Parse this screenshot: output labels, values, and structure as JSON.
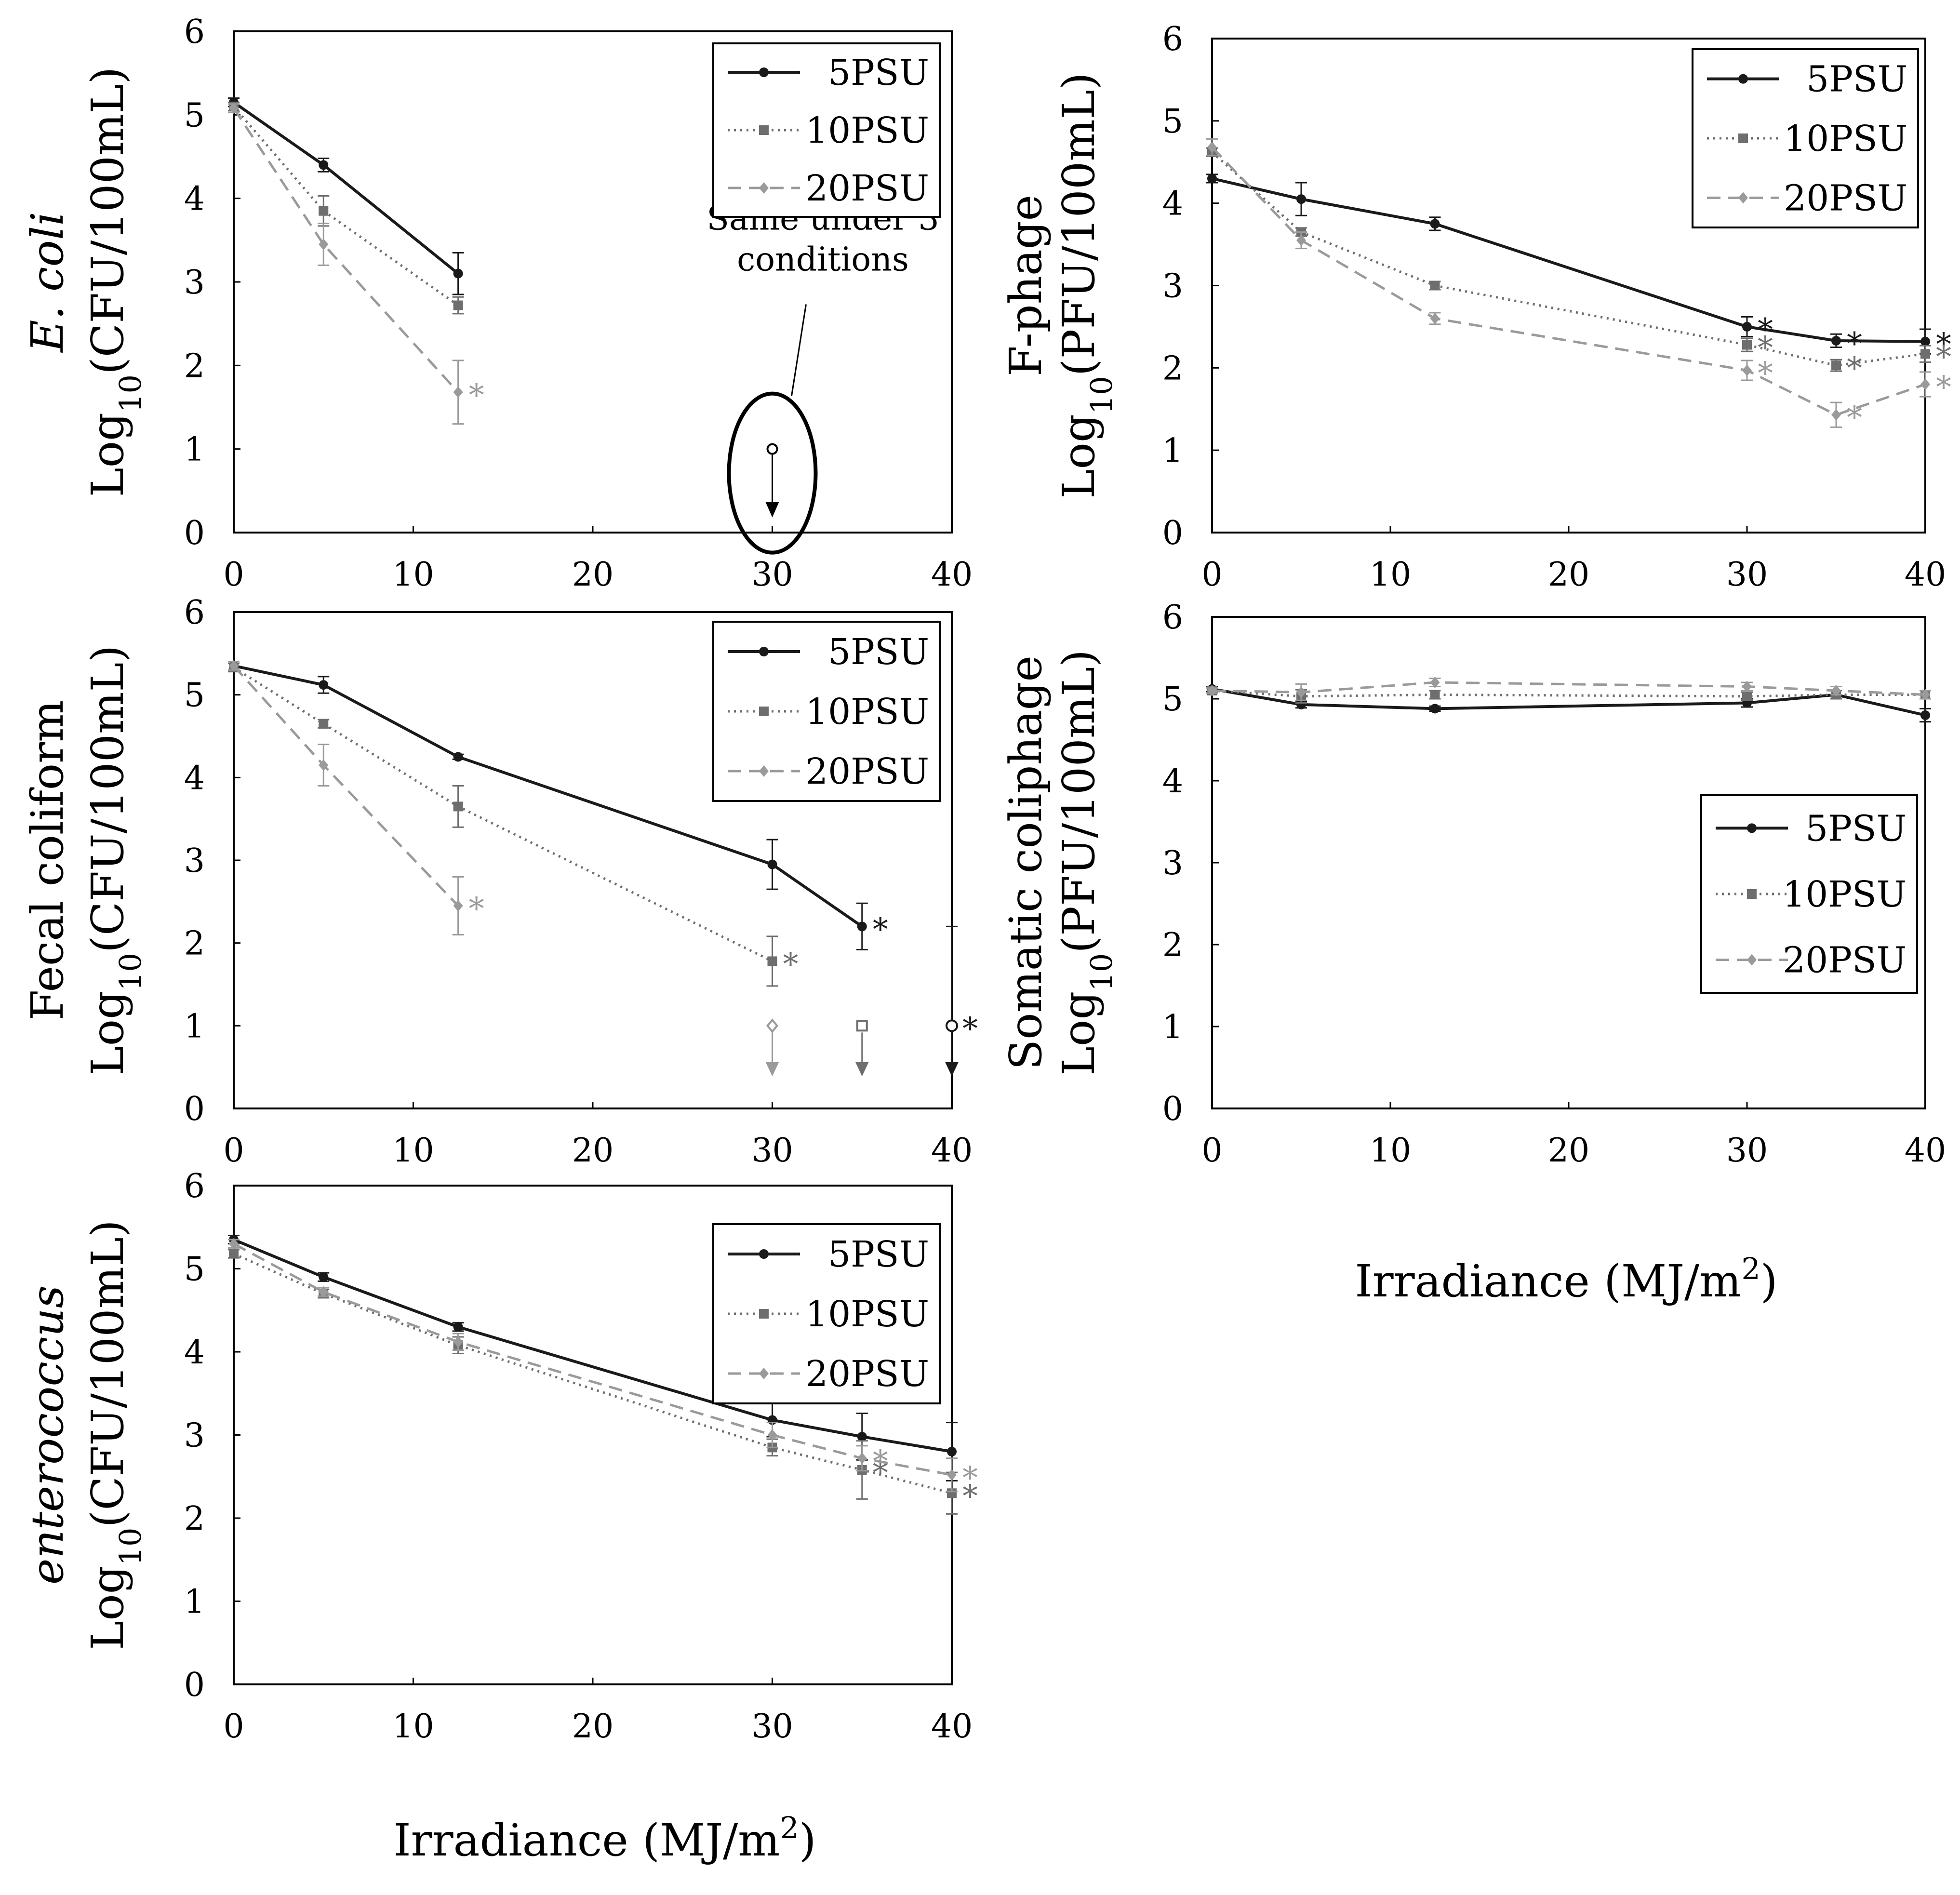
{
  "figure": {
    "xlabel_text": "Irradiance (MJ/m",
    "xlabel_sup": "2",
    "xlabel_close": ")",
    "annotation_line1": "Same under 3",
    "annotation_line2": "conditions",
    "star": "*"
  },
  "series_styles": {
    "5PSU": {
      "color": "#1a1a1a",
      "dash": ""
    },
    "10PSU": {
      "color": "#6e6e6e",
      "dash": "4 9"
    },
    "20PSU": {
      "color": "#9a9a9a",
      "dash": "28 16"
    }
  },
  "chart_data": [
    {
      "id": "ecoli",
      "type": "line",
      "ylabel_top": "E. coli",
      "ylabel_top_italic": true,
      "ylabel_log": "Log",
      "ylabel_sub": "10",
      "ylabel_unit": "(CFU/100mL)",
      "xlim": [
        0,
        40
      ],
      "ylim": [
        0,
        6
      ],
      "xticks": [
        0,
        10,
        20,
        30,
        40
      ],
      "yticks": [
        0,
        1,
        2,
        3,
        4,
        5,
        6
      ],
      "legend": [
        "5PSU",
        "10PSU",
        "20PSU"
      ],
      "legend_position": "top-right",
      "series": [
        {
          "name": "5PSU",
          "x": [
            0,
            5,
            12.5
          ],
          "y": [
            5.15,
            4.4,
            3.1
          ],
          "err": [
            0.05,
            0.08,
            0.25
          ],
          "stars": []
        },
        {
          "name": "10PSU",
          "x": [
            0,
            5,
            12.5
          ],
          "y": [
            5.1,
            3.85,
            2.72
          ],
          "err": [
            0.05,
            0.18,
            0.1
          ],
          "stars": []
        },
        {
          "name": "20PSU",
          "x": [
            0,
            5,
            12.5
          ],
          "y": [
            5.08,
            3.45,
            1.68
          ],
          "err": [
            0.05,
            0.25,
            0.38
          ],
          "stars": [
            2
          ]
        }
      ],
      "detection_limit": {
        "x": 30,
        "y": 1,
        "circled": true,
        "note": true
      }
    },
    {
      "id": "fphage",
      "type": "line",
      "ylabel_top": "F-phage",
      "ylabel_top_italic": false,
      "ylabel_log": "Log",
      "ylabel_sub": "10",
      "ylabel_unit": "(PFU/100mL)",
      "xlim": [
        0,
        40
      ],
      "ylim": [
        0,
        6
      ],
      "xticks": [
        0,
        10,
        20,
        30,
        40
      ],
      "yticks": [
        0,
        1,
        2,
        3,
        4,
        5,
        6
      ],
      "legend": [
        "5PSU",
        "10PSU",
        "20PSU"
      ],
      "legend_position": "top-right",
      "series": [
        {
          "name": "5PSU",
          "x": [
            0,
            5,
            12.5,
            30,
            35,
            40
          ],
          "y": [
            4.3,
            4.05,
            3.75,
            2.5,
            2.33,
            2.32
          ],
          "err": [
            0.05,
            0.2,
            0.08,
            0.12,
            0.08,
            0.15
          ],
          "stars": [
            3,
            4,
            5
          ]
        },
        {
          "name": "10PSU",
          "x": [
            0,
            5,
            12.5,
            30,
            35,
            40
          ],
          "y": [
            4.62,
            3.65,
            3.0,
            2.28,
            2.03,
            2.17
          ],
          "err": [
            0.05,
            0.05,
            0.05,
            0.08,
            0.07,
            0.1
          ],
          "stars": [
            3,
            4,
            5
          ]
        },
        {
          "name": "20PSU",
          "x": [
            0,
            5,
            12.5,
            30,
            35,
            40
          ],
          "y": [
            4.68,
            3.55,
            2.6,
            1.97,
            1.43,
            1.8
          ],
          "err": [
            0.1,
            0.1,
            0.07,
            0.12,
            0.15,
            0.15
          ],
          "stars": [
            3,
            4,
            5
          ]
        }
      ]
    },
    {
      "id": "fecal",
      "type": "line",
      "ylabel_top": "Fecal coliform",
      "ylabel_top_italic": false,
      "ylabel_log": "Log",
      "ylabel_sub": "10",
      "ylabel_unit": "(CFU/100mL)",
      "xlim": [
        0,
        40
      ],
      "ylim": [
        0,
        6
      ],
      "xticks": [
        0,
        10,
        20,
        30,
        40
      ],
      "yticks": [
        0,
        1,
        2,
        3,
        4,
        5,
        6
      ],
      "legend": [
        "5PSU",
        "10PSU",
        "20PSU"
      ],
      "legend_position": "top-right",
      "series": [
        {
          "name": "5PSU",
          "x": [
            0,
            5,
            12.5,
            30,
            35
          ],
          "y": [
            5.35,
            5.12,
            4.25,
            2.95,
            2.2
          ],
          "err": [
            0.05,
            0.1,
            0.03,
            0.3,
            0.28
          ],
          "stars": [
            4
          ]
        },
        {
          "name": "10PSU",
          "x": [
            0,
            5,
            12.5,
            30
          ],
          "y": [
            5.33,
            4.65,
            3.65,
            1.78
          ],
          "err": [
            0.05,
            0.05,
            0.25,
            0.3
          ],
          "stars": [
            3
          ]
        },
        {
          "name": "20PSU",
          "x": [
            0,
            5,
            12.5
          ],
          "y": [
            5.35,
            4.15,
            2.45
          ],
          "err": [
            0.05,
            0.25,
            0.35
          ],
          "stars": [
            2
          ]
        }
      ],
      "below_limit": [
        {
          "name": "20PSU",
          "x": 30,
          "marker": "diamond",
          "star": false
        },
        {
          "name": "10PSU",
          "x": 35,
          "marker": "square",
          "star": false
        },
        {
          "name": "5PSU",
          "x": 40,
          "marker": "circle",
          "star": true,
          "err_high": 2.2
        }
      ]
    },
    {
      "id": "somatic",
      "type": "line",
      "ylabel_top": "Somatic coliphage",
      "ylabel_top_italic": false,
      "ylabel_log": "Log",
      "ylabel_sub": "10",
      "ylabel_unit": "(PFU/100mL)",
      "xlim": [
        0,
        40
      ],
      "ylim": [
        0,
        6
      ],
      "xticks": [
        0,
        10,
        20,
        30,
        40
      ],
      "yticks": [
        0,
        1,
        2,
        3,
        4,
        5,
        6
      ],
      "legend": [
        "5PSU",
        "10PSU",
        "20PSU"
      ],
      "legend_position": "middle-right",
      "series": [
        {
          "name": "5PSU",
          "x": [
            0,
            5,
            12.5,
            30,
            35,
            40
          ],
          "y": [
            5.12,
            4.93,
            4.88,
            4.95,
            5.05,
            4.8
          ],
          "err": [
            0.03,
            0.04,
            0.03,
            0.05,
            0.05,
            0.08
          ],
          "stars": []
        },
        {
          "name": "10PSU",
          "x": [
            0,
            5,
            12.5,
            30,
            35,
            40
          ],
          "y": [
            5.1,
            5.03,
            5.05,
            5.03,
            5.05,
            5.05
          ],
          "err": [
            0.03,
            0.08,
            0.05,
            0.05,
            0.05,
            0.05
          ],
          "stars": []
        },
        {
          "name": "20PSU",
          "x": [
            0,
            5,
            12.5,
            30,
            35,
            40
          ],
          "y": [
            5.1,
            5.08,
            5.2,
            5.15,
            5.1,
            5.05
          ],
          "err": [
            0.03,
            0.1,
            0.05,
            0.05,
            0.05,
            0.05
          ],
          "stars": []
        }
      ]
    },
    {
      "id": "entero",
      "type": "line",
      "ylabel_top": "enterococcus",
      "ylabel_top_italic": true,
      "ylabel_log": "Log",
      "ylabel_sub": "10",
      "ylabel_unit": "(CFU/100mL)",
      "xlim": [
        0,
        40
      ],
      "ylim": [
        0,
        6
      ],
      "xticks": [
        0,
        10,
        20,
        30,
        40
      ],
      "yticks": [
        0,
        1,
        2,
        3,
        4,
        5,
        6
      ],
      "legend": [
        "5PSU",
        "10PSU",
        "20PSU"
      ],
      "legend_position": "top-right",
      "series": [
        {
          "name": "5PSU",
          "x": [
            0,
            5,
            12.5,
            30,
            35,
            40
          ],
          "y": [
            5.35,
            4.9,
            4.3,
            3.18,
            2.98,
            2.8
          ],
          "err": [
            0.05,
            0.05,
            0.05,
            0.2,
            0.28,
            0.35
          ],
          "stars": []
        },
        {
          "name": "10PSU",
          "x": [
            0,
            5,
            12.5,
            30,
            35,
            40
          ],
          "y": [
            5.18,
            4.7,
            4.08,
            2.85,
            2.58,
            2.3
          ],
          "err": [
            0.05,
            0.05,
            0.1,
            0.1,
            0.35,
            0.25
          ],
          "stars": [
            4,
            5
          ]
        },
        {
          "name": "20PSU",
          "x": [
            0,
            5,
            12.5,
            30,
            35,
            40
          ],
          "y": [
            5.3,
            4.72,
            4.12,
            3.0,
            2.72,
            2.52
          ],
          "err": [
            0.05,
            0.05,
            0.1,
            0.15,
            0.15,
            0.2
          ],
          "stars": [
            4,
            5
          ]
        }
      ]
    }
  ]
}
